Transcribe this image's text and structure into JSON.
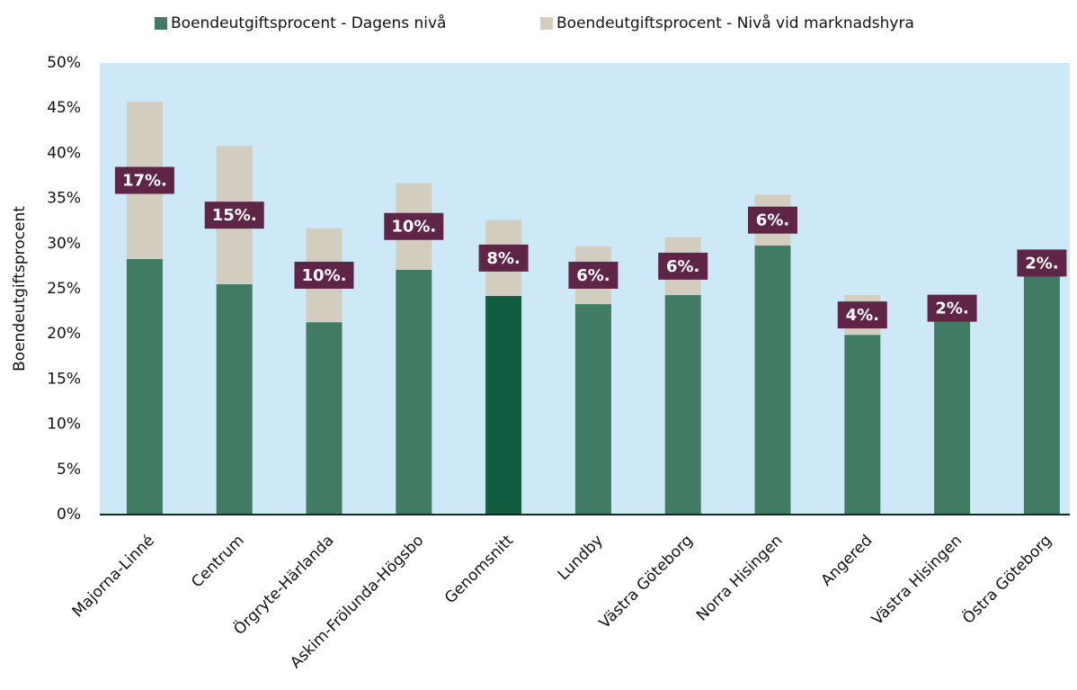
{
  "chart_data": {
    "type": "stacked_bar",
    "y_label": "Boendeutgiftsprocent",
    "categories": [
      "Majorna-Linné",
      "Centrum",
      "Örgryte-Härlanda",
      "Askim-Frölunda-Högsbo",
      "Genomsnitt",
      "Lundby",
      "Västra Göteborg",
      "Norra Hisingen",
      "Angered",
      "Västra Hisingen",
      "Östra Göteborg"
    ],
    "series": [
      {
        "name": "Boendeutgiftsprocent - Dagens nivå",
        "color": "#417b64",
        "colors": [
          "#417b64",
          "#417b64",
          "#417b64",
          "#417b64",
          "#125c42",
          "#417b64",
          "#417b64",
          "#417b64",
          "#417b64",
          "#417b64",
          "#417b64"
        ],
        "values": [
          28.3,
          25.5,
          21.3,
          27.1,
          24.2,
          23.3,
          24.3,
          29.8,
          19.9,
          21.9,
          26.9
        ]
      },
      {
        "name": "Boendeutgiftsprocent - Nivå vid marknadshyra",
        "color": "#d3cdbf",
        "values": [
          17.4,
          15.3,
          10.4,
          9.6,
          8.4,
          6.4,
          6.4,
          5.6,
          4.4,
          1.9,
          1.9
        ],
        "value_labels": [
          "17%.",
          "15%.",
          "10%.",
          "10%.",
          "8%.",
          "6%.",
          "6%.",
          "6%.",
          "4%.",
          "2%.",
          "2%."
        ]
      }
    ],
    "ylim": [
      0,
      50
    ],
    "yticks": [
      {
        "value": 0,
        "label": "0%"
      },
      {
        "value": 5,
        "label": "5%"
      },
      {
        "value": 10,
        "label": "10%"
      },
      {
        "value": 15,
        "label": "15%"
      },
      {
        "value": 20,
        "label": "20%"
      },
      {
        "value": 25,
        "label": "25%"
      },
      {
        "value": 30,
        "label": "30%"
      },
      {
        "value": 35,
        "label": "35%"
      },
      {
        "value": 40,
        "label": "40%"
      },
      {
        "value": 45,
        "label": "45%"
      },
      {
        "value": 50,
        "label": "50%"
      }
    ],
    "plot_background": "#cde9f8",
    "label_box_color": "#5e2546",
    "legend": "top"
  }
}
